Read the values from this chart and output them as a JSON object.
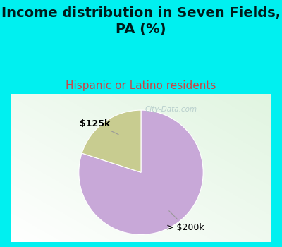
{
  "title": "Income distribution in Seven Fields,\nPA (%)",
  "subtitle": "Hispanic or Latino residents",
  "slices": [
    80,
    20
  ],
  "labels": [
    "> $200k",
    "$125k"
  ],
  "colors": [
    "#c8a8d8",
    "#c8cc90"
  ],
  "bg_cyan": "#00f0f0",
  "chart_bg": "#e8f5e8",
  "title_fontsize": 14,
  "subtitle_fontsize": 11,
  "subtitle_color": "#cc4444",
  "label_fontsize": 9,
  "watermark": "City-Data.com",
  "startangle": 90
}
